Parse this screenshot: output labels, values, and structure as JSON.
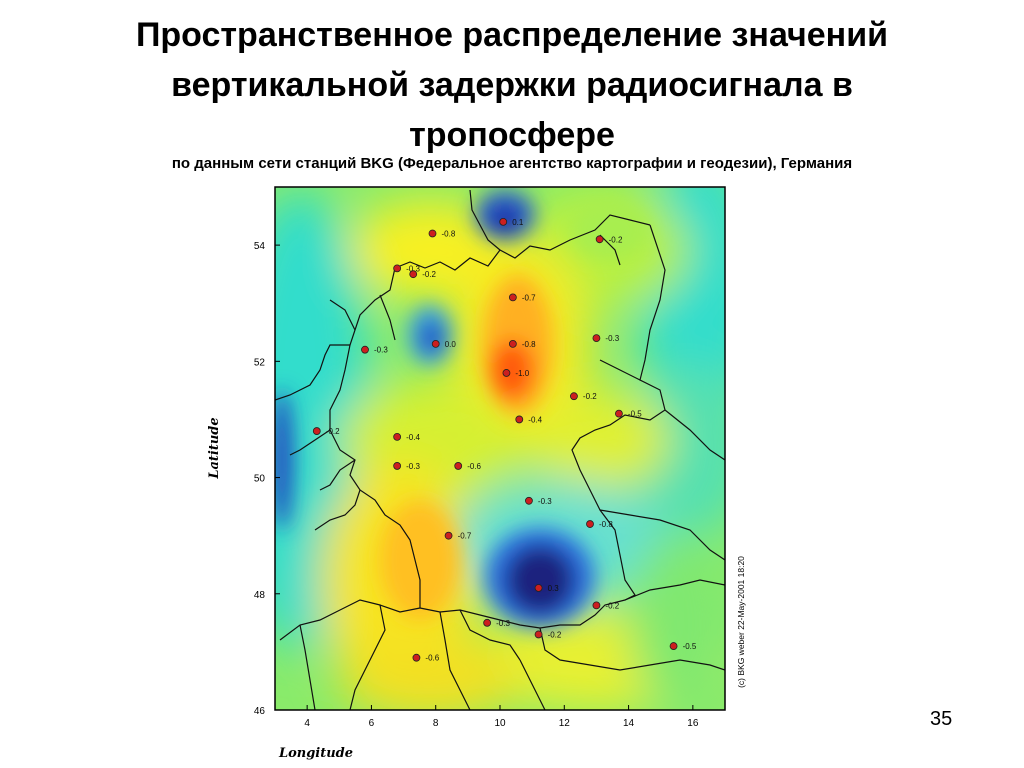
{
  "slide": {
    "title_line1": "Пространственное распределение значений",
    "title_line2": "вертикальной задержки радиосигнала в",
    "title_line3": "тропосфере",
    "subtitle": "по данным сети станций BKG (Федеральное агентство картографии и геодезии), Германия",
    "page_number": "35"
  },
  "map": {
    "xlabel": "Longitude",
    "ylabel": "Latitude",
    "credit": "(c) BKG weber 22-May-2001 18:20",
    "x_ticks": [
      4,
      6,
      8,
      10,
      12,
      14,
      16
    ],
    "y_ticks": [
      46,
      48,
      50,
      52,
      54
    ],
    "lon_range": [
      3,
      17
    ],
    "lat_range": [
      46,
      55
    ],
    "stations": [
      {
        "lon": 10.1,
        "lat": 54.4,
        "label": "0.1"
      },
      {
        "lon": 7.9,
        "lat": 54.2,
        "label": "-0.8"
      },
      {
        "lon": 13.1,
        "lat": 54.1,
        "label": "-0.2"
      },
      {
        "lon": 6.8,
        "lat": 53.6,
        "label": "-0.3"
      },
      {
        "lon": 7.3,
        "lat": 53.5,
        "label": "-0.2"
      },
      {
        "lon": 10.4,
        "lat": 53.1,
        "label": "-0.7"
      },
      {
        "lon": 13.0,
        "lat": 52.4,
        "label": "-0.3"
      },
      {
        "lon": 5.8,
        "lat": 52.2,
        "label": "-0.3"
      },
      {
        "lon": 8.0,
        "lat": 52.3,
        "label": "0.0"
      },
      {
        "lon": 10.4,
        "lat": 52.3,
        "label": "-0.8"
      },
      {
        "lon": 10.2,
        "lat": 51.8,
        "label": "-1.0"
      },
      {
        "lon": 12.3,
        "lat": 51.4,
        "label": "-0.2"
      },
      {
        "lon": 13.7,
        "lat": 51.1,
        "label": "-0.5"
      },
      {
        "lon": 4.3,
        "lat": 50.8,
        "label": "-0.2"
      },
      {
        "lon": 6.8,
        "lat": 50.7,
        "label": "-0.4"
      },
      {
        "lon": 10.6,
        "lat": 51.0,
        "label": "-0.4"
      },
      {
        "lon": 6.8,
        "lat": 50.2,
        "label": "-0.3"
      },
      {
        "lon": 8.7,
        "lat": 50.2,
        "label": "-0.6"
      },
      {
        "lon": 10.9,
        "lat": 49.6,
        "label": "-0.3"
      },
      {
        "lon": 12.8,
        "lat": 49.2,
        "label": "-0.8"
      },
      {
        "lon": 8.4,
        "lat": 49.0,
        "label": "-0.7"
      },
      {
        "lon": 11.2,
        "lat": 48.1,
        "label": "0.3"
      },
      {
        "lon": 13.0,
        "lat": 47.8,
        "label": "-0.2"
      },
      {
        "lon": 9.6,
        "lat": 47.5,
        "label": "-0.3"
      },
      {
        "lon": 11.2,
        "lat": 47.3,
        "label": "-0.2"
      },
      {
        "lon": 7.4,
        "lat": 46.9,
        "label": "-0.6"
      },
      {
        "lon": 15.4,
        "lat": 47.1,
        "label": "-0.5"
      }
    ],
    "colors": {
      "station_fill": "#cc1f1f",
      "deep_blue": "#1a237e",
      "yellow": "#ffff33",
      "orange": "#ff9900",
      "cyan": "#33ddcc"
    }
  }
}
